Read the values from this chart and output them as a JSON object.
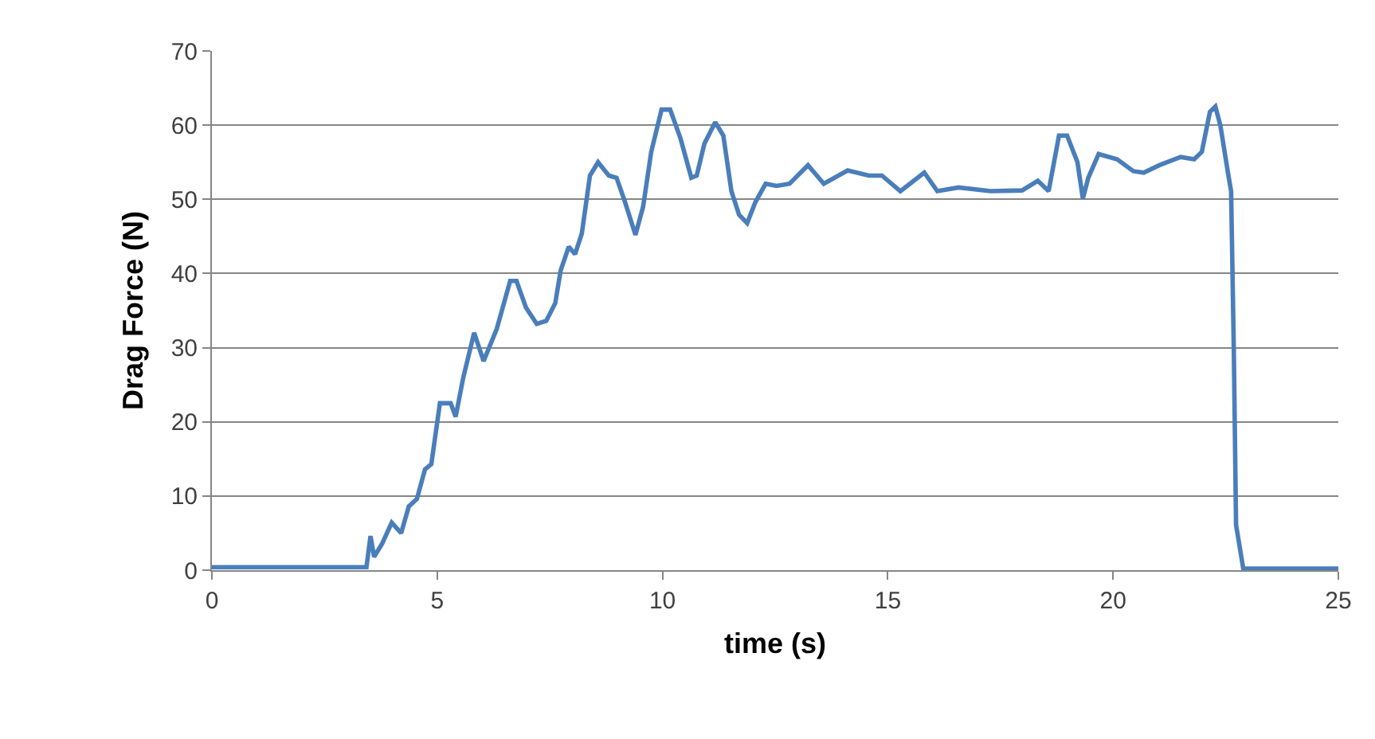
{
  "chart_data": {
    "type": "line",
    "xlabel": "time (s)",
    "ylabel": "Drag Force (N)",
    "xlim": [
      0,
      25
    ],
    "xticks": [
      0,
      5,
      10,
      15,
      20,
      25
    ],
    "ylim": [
      0,
      70
    ],
    "yticks": [
      0,
      10,
      20,
      30,
      40,
      50,
      60,
      70
    ],
    "grid": "y",
    "marker": "none",
    "line_style": "solid",
    "series": [
      {
        "color": "#4a7ebb",
        "x": [
          0,
          3.43,
          3.52,
          3.6,
          3.78,
          3.99,
          4.2,
          4.37,
          4.55,
          4.73,
          4.87,
          5.06,
          5.3,
          5.41,
          5.58,
          5.82,
          6.03,
          6.32,
          6.62,
          6.76,
          6.97,
          7.21,
          7.42,
          7.62,
          7.74,
          7.92,
          8.06,
          8.21,
          8.39,
          8.57,
          8.81,
          8.98,
          9.16,
          9.4,
          9.57,
          9.75,
          9.98,
          10.17,
          10.4,
          10.64,
          10.76,
          10.93,
          11.17,
          11.35,
          11.53,
          11.7,
          11.88,
          12.06,
          12.29,
          12.53,
          12.82,
          13.23,
          13.58,
          14.11,
          14.58,
          14.87,
          15.28,
          15.81,
          16.1,
          16.57,
          17.28,
          17.98,
          18.33,
          18.57,
          18.8,
          18.98,
          19.21,
          19.33,
          19.45,
          19.68,
          20.09,
          20.45,
          20.68,
          21.03,
          21.5,
          21.8,
          21.97,
          22.15,
          22.27,
          22.38,
          22.56,
          22.62,
          22.68,
          22.73,
          22.89,
          25
        ],
        "values": [
          0.4,
          0.4,
          4.6,
          1.8,
          3.6,
          6.4,
          5,
          8.6,
          9.6,
          13.6,
          14.3,
          22.5,
          22.5,
          20.7,
          26,
          32,
          28.2,
          32.5,
          39,
          39,
          35.4,
          33.2,
          33.6,
          36,
          40.4,
          43.6,
          42.6,
          45.4,
          53.2,
          55,
          53.2,
          52.9,
          49.8,
          45.2,
          49,
          56.4,
          62.1,
          62.1,
          58.2,
          52.9,
          53.2,
          57.5,
          60.4,
          58.6,
          51.1,
          47.9,
          46.8,
          49.6,
          52.1,
          51.8,
          52.1,
          54.6,
          52.1,
          53.9,
          53.2,
          53.2,
          51.1,
          53.6,
          51.1,
          51.6,
          51.1,
          51.2,
          52.5,
          51.1,
          58.6,
          58.6,
          55,
          50.1,
          52.9,
          56.1,
          55.4,
          53.8,
          53.6,
          54.6,
          55.7,
          55.4,
          56.4,
          61.8,
          62.5,
          60,
          53.2,
          51.1,
          29.6,
          6.1,
          0.2,
          0.2
        ]
      }
    ]
  }
}
